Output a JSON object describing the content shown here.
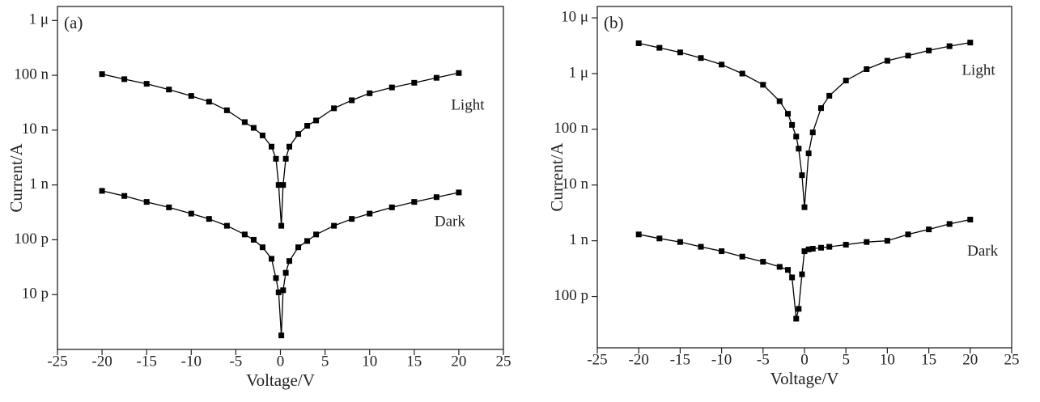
{
  "chart_data": [
    {
      "type": "line",
      "panel_label": "(a)",
      "x_label": "Voltage/V",
      "y_label": "Current/A",
      "log_y": true,
      "xlim": [
        -25,
        25
      ],
      "xticks": [
        -25,
        -20,
        -15,
        -10,
        -5,
        0,
        5,
        10,
        15,
        20,
        25
      ],
      "ylim": [
        1e-12,
        1.8e-06
      ],
      "yticks": [
        {
          "value": 1e-11,
          "label": "10 p"
        },
        {
          "value": 1e-10,
          "label": "100 p"
        },
        {
          "value": 1e-09,
          "label": "1 n"
        },
        {
          "value": 1e-08,
          "label": "10 n"
        },
        {
          "value": 1e-07,
          "label": "100 n"
        },
        {
          "value": 1e-06,
          "label": "1 μ"
        }
      ],
      "x": [
        -20,
        -17.5,
        -15,
        -12.5,
        -10,
        -8,
        -6,
        -4,
        -3,
        -2,
        -1,
        -0.5,
        -0.2,
        0.1,
        0.3,
        0.6,
        1,
        2,
        3,
        4,
        6,
        8,
        10,
        12.5,
        15,
        17.5,
        20
      ],
      "series": [
        {
          "name": "Light",
          "color": "#000000",
          "values": [
            1.05e-07,
            8.5e-08,
            7e-08,
            5.5e-08,
            4.2e-08,
            3.3e-08,
            2.3e-08,
            1.4e-08,
            1.1e-08,
            8e-09,
            5e-09,
            3e-09,
            1e-09,
            1.8e-10,
            1e-09,
            3e-09,
            5e-09,
            8.5e-09,
            1.2e-08,
            1.5e-08,
            2.5e-08,
            3.5e-08,
            4.7e-08,
            6e-08,
            7.3e-08,
            9e-08,
            1.1e-07
          ]
        },
        {
          "name": "Dark",
          "color": "#000000",
          "values": [
            7.8e-10,
            6.3e-10,
            4.9e-10,
            3.9e-10,
            3e-10,
            2.4e-10,
            1.8e-10,
            1.25e-10,
            1e-10,
            7.3e-11,
            4.5e-11,
            2e-11,
            1.1e-11,
            1.8e-12,
            1.2e-11,
            2.5e-11,
            4.1e-11,
            7.3e-11,
            9.5e-11,
            1.25e-10,
            1.8e-10,
            2.4e-10,
            3e-10,
            3.9e-10,
            4.9e-10,
            6e-10,
            7.3e-10
          ]
        }
      ]
    },
    {
      "type": "line",
      "panel_label": "(b)",
      "x_label": "Voltage/V",
      "y_label": "Current/A",
      "log_y": true,
      "xlim": [
        -25,
        25
      ],
      "xticks": [
        -25,
        -20,
        -15,
        -10,
        -5,
        0,
        5,
        10,
        15,
        20,
        25
      ],
      "ylim": [
        1.2e-11,
        1.6e-05
      ],
      "yticks": [
        {
          "value": 1e-10,
          "label": "100 p"
        },
        {
          "value": 1e-09,
          "label": "1 n"
        },
        {
          "value": 1e-08,
          "label": "10 n"
        },
        {
          "value": 1e-07,
          "label": "100 n"
        },
        {
          "value": 1e-06,
          "label": "1 μ"
        },
        {
          "value": 1e-05,
          "label": "10 μ"
        }
      ],
      "x": [
        -20,
        -17.5,
        -15,
        -12.5,
        -10,
        -7.5,
        -5,
        -3,
        -2,
        -1.5,
        -1,
        -0.7,
        -0.3,
        0,
        0.5,
        1,
        2,
        3,
        5,
        7.5,
        10,
        12.5,
        15,
        17.5,
        20
      ],
      "series": [
        {
          "name": "Light",
          "color": "#000000",
          "values": [
            3.5e-06,
            2.9e-06,
            2.4e-06,
            1.9e-06,
            1.45e-06,
            1e-06,
            6.3e-07,
            3.2e-07,
            1.9e-07,
            1.2e-07,
            7.4e-08,
            4.5e-08,
            1.5e-08,
            4e-09,
            3.7e-08,
            8.8e-08,
            2.4e-07,
            4e-07,
            7.5e-07,
            1.2e-06,
            1.7e-06,
            2.1e-06,
            2.6e-06,
            3.1e-06,
            3.6e-06
          ]
        },
        {
          "name": "Dark",
          "color": "#000000",
          "values": [
            1.3e-09,
            1.1e-09,
            9.5e-10,
            7.8e-10,
            6.5e-10,
            5.2e-10,
            4.2e-10,
            3.4e-10,
            3e-10,
            2.2e-10,
            4e-11,
            6e-11,
            2.5e-10,
            6.5e-10,
            7e-10,
            7.2e-10,
            7.5e-10,
            7.8e-10,
            8.5e-10,
            9.5e-10,
            1e-09,
            1.3e-09,
            1.6e-09,
            2e-09,
            2.4e-09
          ]
        }
      ]
    }
  ]
}
